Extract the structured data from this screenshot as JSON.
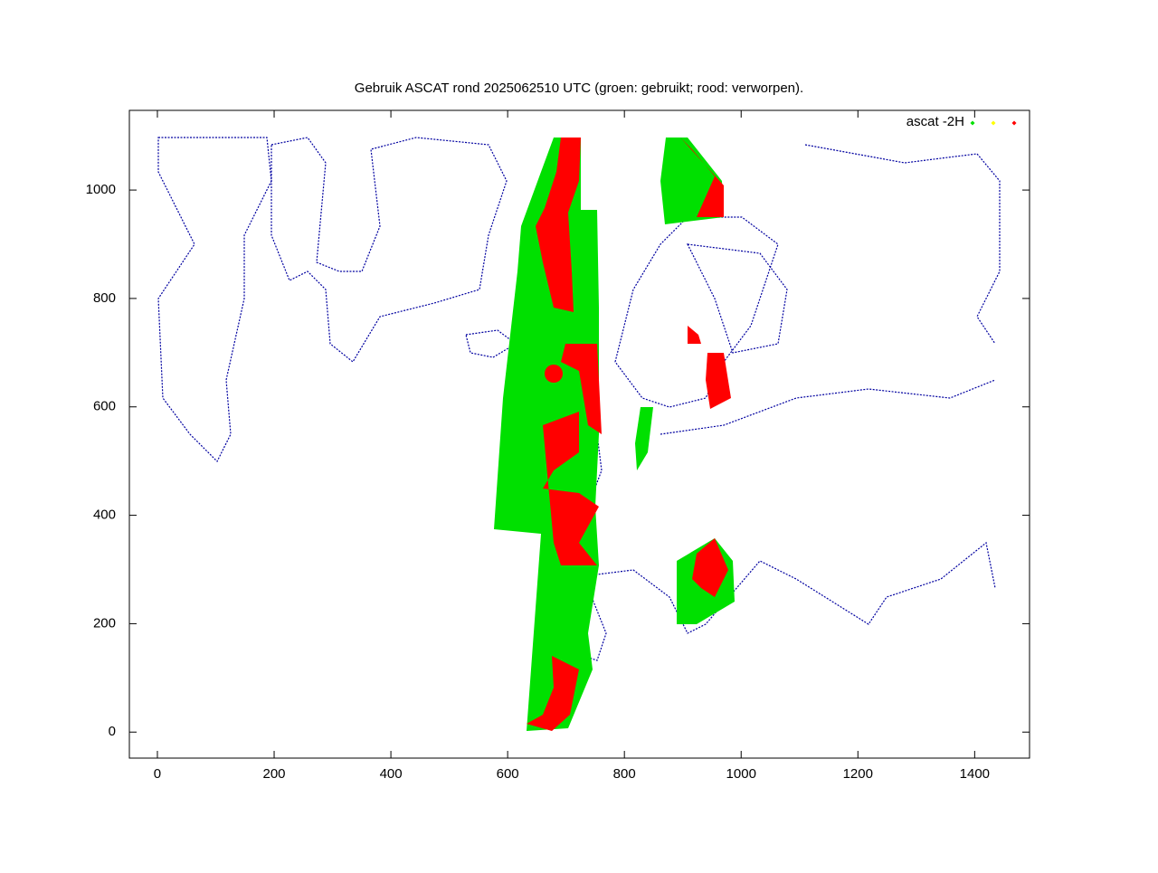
{
  "chart_data": {
    "type": "scatter",
    "title": "Gebruik ASCAT rond 2025062510 UTC (groen: gebruikt; rood: verworpen).",
    "legend": "ascat -2H",
    "legend_colors": [
      "#00e000",
      "#ffff00",
      "#ff0000"
    ],
    "legend_position": "top-right",
    "xlim": [
      -48,
      1494
    ],
    "xticks": [
      0,
      200,
      400,
      600,
      800,
      1000,
      1200,
      1400
    ],
    "ylim": [
      -48,
      1147
    ],
    "yticks": [
      0,
      200,
      400,
      600,
      800,
      1000
    ]
  }
}
